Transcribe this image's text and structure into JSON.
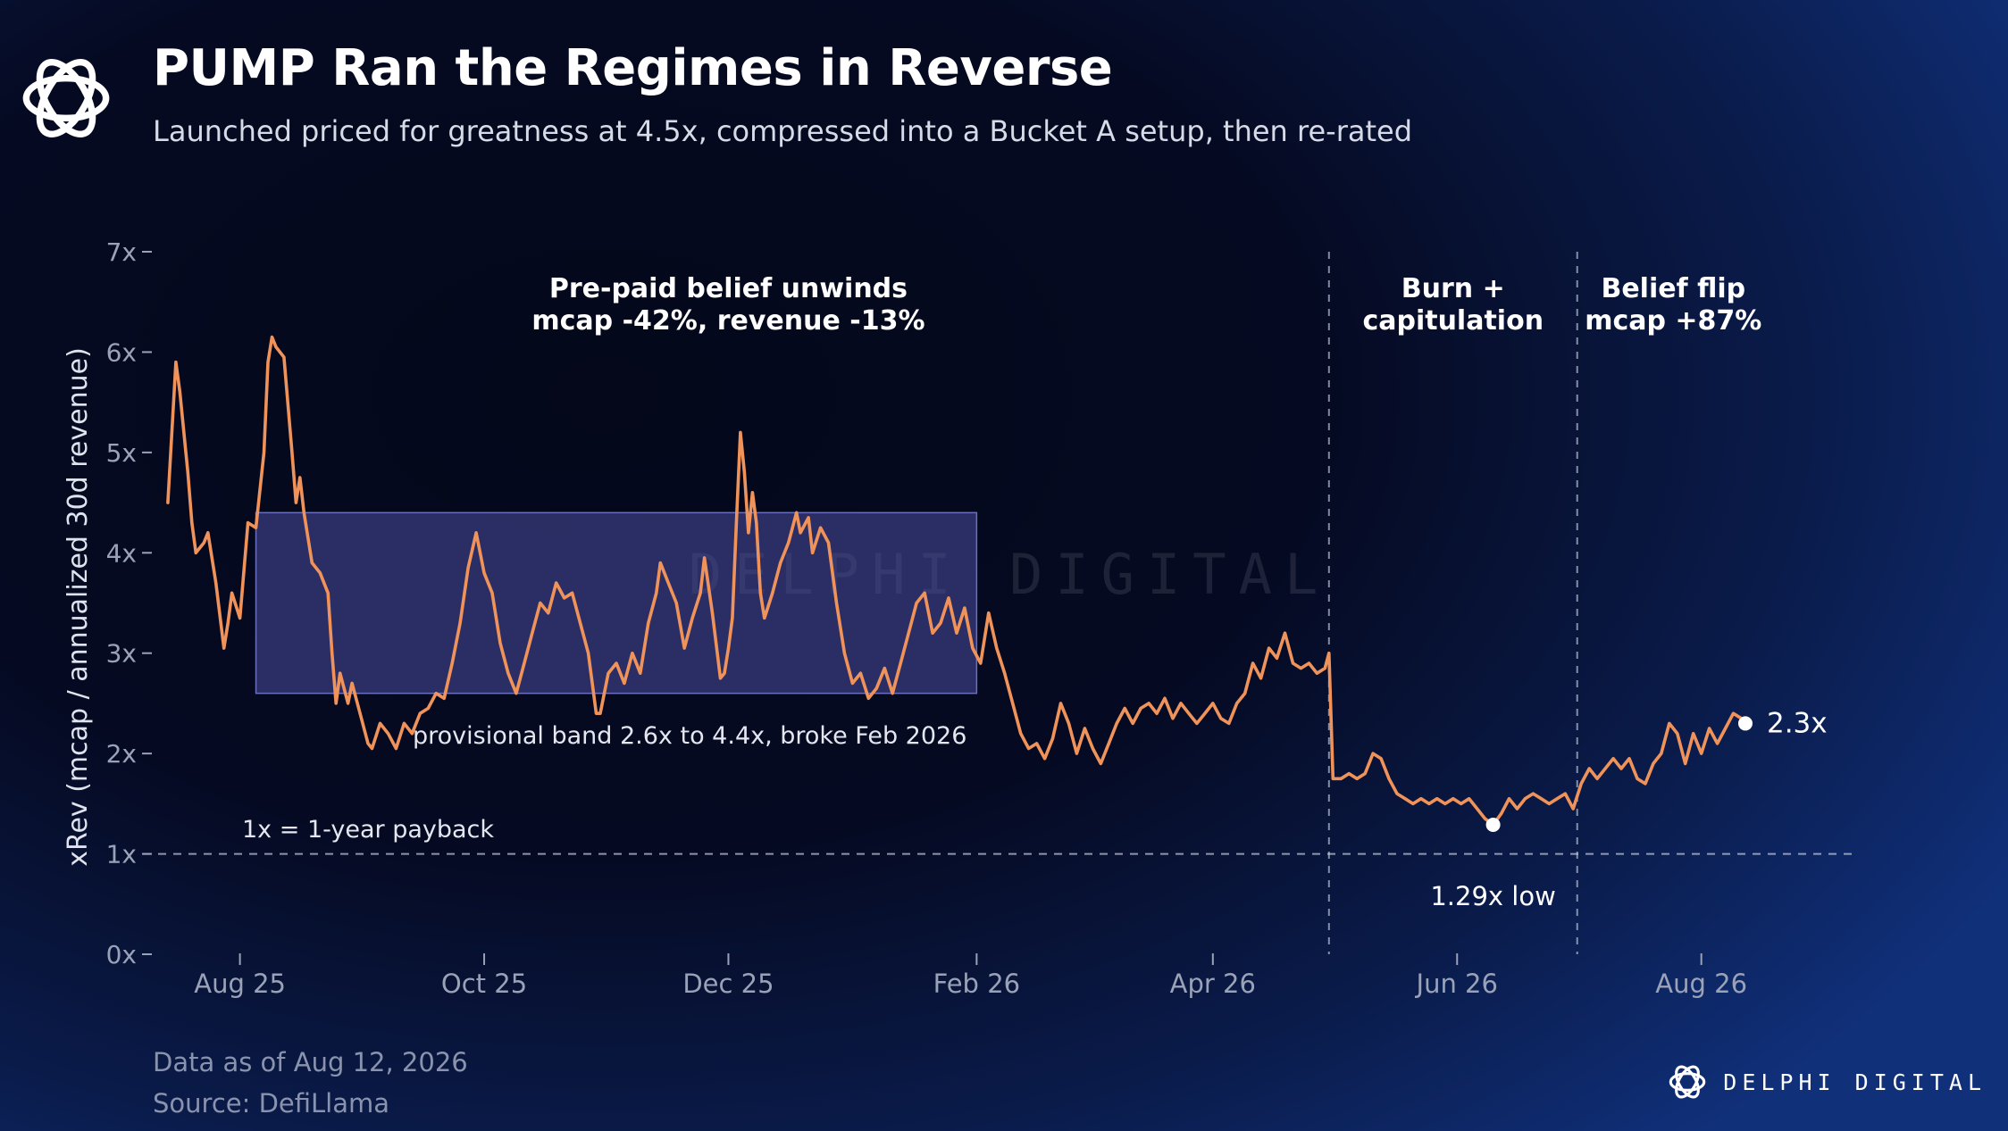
{
  "header": {
    "title": "PUMP Ran the Regimes in Reverse",
    "subtitle": "Launched priced for greatness at 4.5x, compressed into a Bucket A setup, then re-rated"
  },
  "footer": {
    "data_as_of": "Data as of Aug 12, 2026",
    "source": "Source: DefiLlama",
    "brand": "DELPHI DIGITAL",
    "watermark": "DELPHI DIGITAL"
  },
  "colors": {
    "line": "#f0935a",
    "band_fill": "#4a4d9e",
    "reference_line": "#c9cfdd",
    "axis_text": "#9aa2b8",
    "text": "#ffffff"
  },
  "chart_data": {
    "type": "line",
    "ylabel": "xRev (mcap / annualized 30d revenue)",
    "xlabel": "",
    "ylim": [
      0,
      7
    ],
    "xlim": [
      "2025-07-10",
      "2026-09-08"
    ],
    "y_ticks": [
      0,
      1,
      2,
      3,
      4,
      5,
      6,
      7
    ],
    "y_tick_labels": [
      "0x",
      "1x",
      "2x",
      "3x",
      "4x",
      "5x",
      "6x",
      "7x"
    ],
    "x_ticks": [
      {
        "date": "2025-08-01",
        "label": "Aug 25"
      },
      {
        "date": "2025-10-01",
        "label": "Oct 25"
      },
      {
        "date": "2025-12-01",
        "label": "Dec 25"
      },
      {
        "date": "2026-02-01",
        "label": "Feb 26"
      },
      {
        "date": "2026-04-01",
        "label": "Apr 26"
      },
      {
        "date": "2026-06-01",
        "label": "Jun 26"
      },
      {
        "date": "2026-08-01",
        "label": "Aug 26"
      }
    ],
    "series": [
      {
        "points": [
          [
            "2025-07-14",
            4.5
          ],
          [
            "2025-07-16",
            5.9
          ],
          [
            "2025-07-17",
            5.6
          ],
          [
            "2025-07-19",
            4.8
          ],
          [
            "2025-07-20",
            4.3
          ],
          [
            "2025-07-21",
            4.0
          ],
          [
            "2025-07-23",
            4.1
          ],
          [
            "2025-07-24",
            4.2
          ],
          [
            "2025-07-26",
            3.7
          ],
          [
            "2025-07-28",
            3.05
          ],
          [
            "2025-07-29",
            3.3
          ],
          [
            "2025-07-30",
            3.6
          ],
          [
            "2025-08-01",
            3.35
          ],
          [
            "2025-08-03",
            4.3
          ],
          [
            "2025-08-05",
            4.25
          ],
          [
            "2025-08-07",
            5.0
          ],
          [
            "2025-08-08",
            5.9
          ],
          [
            "2025-08-09",
            6.15
          ],
          [
            "2025-08-10",
            6.05
          ],
          [
            "2025-08-12",
            5.95
          ],
          [
            "2025-08-14",
            5.0
          ],
          [
            "2025-08-15",
            4.5
          ],
          [
            "2025-08-16",
            4.75
          ],
          [
            "2025-08-17",
            4.4
          ],
          [
            "2025-08-19",
            3.9
          ],
          [
            "2025-08-21",
            3.8
          ],
          [
            "2025-08-23",
            3.6
          ],
          [
            "2025-08-24",
            3.0
          ],
          [
            "2025-08-25",
            2.5
          ],
          [
            "2025-08-26",
            2.8
          ],
          [
            "2025-08-28",
            2.5
          ],
          [
            "2025-08-29",
            2.7
          ],
          [
            "2025-08-31",
            2.4
          ],
          [
            "2025-09-02",
            2.1
          ],
          [
            "2025-09-03",
            2.05
          ],
          [
            "2025-09-05",
            2.3
          ],
          [
            "2025-09-07",
            2.2
          ],
          [
            "2025-09-09",
            2.05
          ],
          [
            "2025-09-11",
            2.3
          ],
          [
            "2025-09-13",
            2.2
          ],
          [
            "2025-09-15",
            2.4
          ],
          [
            "2025-09-17",
            2.45
          ],
          [
            "2025-09-19",
            2.6
          ],
          [
            "2025-09-21",
            2.55
          ],
          [
            "2025-09-23",
            2.9
          ],
          [
            "2025-09-25",
            3.3
          ],
          [
            "2025-09-27",
            3.85
          ],
          [
            "2025-09-29",
            4.2
          ],
          [
            "2025-10-01",
            3.8
          ],
          [
            "2025-10-03",
            3.6
          ],
          [
            "2025-10-05",
            3.1
          ],
          [
            "2025-10-07",
            2.8
          ],
          [
            "2025-10-09",
            2.6
          ],
          [
            "2025-10-11",
            2.9
          ],
          [
            "2025-10-13",
            3.2
          ],
          [
            "2025-10-15",
            3.5
          ],
          [
            "2025-10-17",
            3.4
          ],
          [
            "2025-10-19",
            3.7
          ],
          [
            "2025-10-21",
            3.55
          ],
          [
            "2025-10-23",
            3.6
          ],
          [
            "2025-10-25",
            3.3
          ],
          [
            "2025-10-27",
            3.0
          ],
          [
            "2025-10-29",
            2.4
          ],
          [
            "2025-10-30",
            2.4
          ],
          [
            "2025-11-01",
            2.8
          ],
          [
            "2025-11-03",
            2.9
          ],
          [
            "2025-11-05",
            2.7
          ],
          [
            "2025-11-07",
            3.0
          ],
          [
            "2025-11-09",
            2.8
          ],
          [
            "2025-11-11",
            3.3
          ],
          [
            "2025-11-13",
            3.6
          ],
          [
            "2025-11-14",
            3.9
          ],
          [
            "2025-11-16",
            3.7
          ],
          [
            "2025-11-18",
            3.5
          ],
          [
            "2025-11-20",
            3.05
          ],
          [
            "2025-11-22",
            3.35
          ],
          [
            "2025-11-24",
            3.6
          ],
          [
            "2025-11-25",
            3.95
          ],
          [
            "2025-11-27",
            3.4
          ],
          [
            "2025-11-29",
            2.75
          ],
          [
            "2025-11-30",
            2.8
          ],
          [
            "2025-12-01",
            3.05
          ],
          [
            "2025-12-02",
            3.35
          ],
          [
            "2025-12-03",
            4.3
          ],
          [
            "2025-12-04",
            5.2
          ],
          [
            "2025-12-05",
            4.8
          ],
          [
            "2025-12-06",
            4.2
          ],
          [
            "2025-12-07",
            4.6
          ],
          [
            "2025-12-08",
            4.3
          ],
          [
            "2025-12-09",
            3.6
          ],
          [
            "2025-12-10",
            3.35
          ],
          [
            "2025-12-12",
            3.6
          ],
          [
            "2025-12-14",
            3.9
          ],
          [
            "2025-12-16",
            4.1
          ],
          [
            "2025-12-18",
            4.4
          ],
          [
            "2025-12-19",
            4.2
          ],
          [
            "2025-12-21",
            4.35
          ],
          [
            "2025-12-22",
            4.0
          ],
          [
            "2025-12-24",
            4.25
          ],
          [
            "2025-12-26",
            4.1
          ],
          [
            "2025-12-28",
            3.5
          ],
          [
            "2025-12-30",
            3.0
          ],
          [
            "2026-01-01",
            2.7
          ],
          [
            "2026-01-03",
            2.8
          ],
          [
            "2026-01-05",
            2.55
          ],
          [
            "2026-01-07",
            2.65
          ],
          [
            "2026-01-09",
            2.85
          ],
          [
            "2026-01-11",
            2.6
          ],
          [
            "2026-01-13",
            2.9
          ],
          [
            "2026-01-15",
            3.2
          ],
          [
            "2026-01-17",
            3.5
          ],
          [
            "2026-01-19",
            3.6
          ],
          [
            "2026-01-21",
            3.2
          ],
          [
            "2026-01-23",
            3.3
          ],
          [
            "2026-01-25",
            3.55
          ],
          [
            "2026-01-27",
            3.2
          ],
          [
            "2026-01-29",
            3.45
          ],
          [
            "2026-01-31",
            3.05
          ],
          [
            "2026-02-02",
            2.9
          ],
          [
            "2026-02-04",
            3.4
          ],
          [
            "2026-02-06",
            3.05
          ],
          [
            "2026-02-08",
            2.8
          ],
          [
            "2026-02-10",
            2.5
          ],
          [
            "2026-02-12",
            2.2
          ],
          [
            "2026-02-14",
            2.05
          ],
          [
            "2026-02-16",
            2.1
          ],
          [
            "2026-02-18",
            1.95
          ],
          [
            "2026-02-20",
            2.15
          ],
          [
            "2026-02-22",
            2.5
          ],
          [
            "2026-02-24",
            2.3
          ],
          [
            "2026-02-26",
            2.0
          ],
          [
            "2026-02-28",
            2.25
          ],
          [
            "2026-03-02",
            2.05
          ],
          [
            "2026-03-04",
            1.9
          ],
          [
            "2026-03-06",
            2.1
          ],
          [
            "2026-03-08",
            2.3
          ],
          [
            "2026-03-10",
            2.45
          ],
          [
            "2026-03-12",
            2.3
          ],
          [
            "2026-03-14",
            2.45
          ],
          [
            "2026-03-16",
            2.5
          ],
          [
            "2026-03-18",
            2.4
          ],
          [
            "2026-03-20",
            2.55
          ],
          [
            "2026-03-22",
            2.35
          ],
          [
            "2026-03-24",
            2.5
          ],
          [
            "2026-03-26",
            2.4
          ],
          [
            "2026-03-28",
            2.3
          ],
          [
            "2026-03-30",
            2.4
          ],
          [
            "2026-04-01",
            2.5
          ],
          [
            "2026-04-03",
            2.35
          ],
          [
            "2026-04-05",
            2.3
          ],
          [
            "2026-04-07",
            2.5
          ],
          [
            "2026-04-09",
            2.6
          ],
          [
            "2026-04-11",
            2.9
          ],
          [
            "2026-04-13",
            2.75
          ],
          [
            "2026-04-15",
            3.05
          ],
          [
            "2026-04-17",
            2.95
          ],
          [
            "2026-04-19",
            3.2
          ],
          [
            "2026-04-21",
            2.9
          ],
          [
            "2026-04-23",
            2.85
          ],
          [
            "2026-04-25",
            2.9
          ],
          [
            "2026-04-27",
            2.8
          ],
          [
            "2026-04-29",
            2.85
          ],
          [
            "2026-04-30",
            3.0
          ],
          [
            "2026-05-01",
            1.75
          ],
          [
            "2026-05-03",
            1.75
          ],
          [
            "2026-05-05",
            1.8
          ],
          [
            "2026-05-07",
            1.75
          ],
          [
            "2026-05-09",
            1.8
          ],
          [
            "2026-05-11",
            2.0
          ],
          [
            "2026-05-13",
            1.95
          ],
          [
            "2026-05-15",
            1.75
          ],
          [
            "2026-05-17",
            1.6
          ],
          [
            "2026-05-19",
            1.55
          ],
          [
            "2026-05-21",
            1.5
          ],
          [
            "2026-05-23",
            1.55
          ],
          [
            "2026-05-25",
            1.5
          ],
          [
            "2026-05-27",
            1.55
          ],
          [
            "2026-05-29",
            1.5
          ],
          [
            "2026-05-31",
            1.55
          ],
          [
            "2026-06-02",
            1.5
          ],
          [
            "2026-06-04",
            1.55
          ],
          [
            "2026-06-06",
            1.45
          ],
          [
            "2026-06-08",
            1.35
          ],
          [
            "2026-06-10",
            1.29
          ],
          [
            "2026-06-12",
            1.4
          ],
          [
            "2026-06-14",
            1.55
          ],
          [
            "2026-06-16",
            1.45
          ],
          [
            "2026-06-18",
            1.55
          ],
          [
            "2026-06-20",
            1.6
          ],
          [
            "2026-06-22",
            1.55
          ],
          [
            "2026-06-24",
            1.5
          ],
          [
            "2026-06-26",
            1.55
          ],
          [
            "2026-06-28",
            1.6
          ],
          [
            "2026-06-30",
            1.45
          ],
          [
            "2026-07-02",
            1.7
          ],
          [
            "2026-07-04",
            1.85
          ],
          [
            "2026-07-06",
            1.75
          ],
          [
            "2026-07-08",
            1.85
          ],
          [
            "2026-07-10",
            1.95
          ],
          [
            "2026-07-12",
            1.85
          ],
          [
            "2026-07-14",
            1.95
          ],
          [
            "2026-07-16",
            1.75
          ],
          [
            "2026-07-18",
            1.7
          ],
          [
            "2026-07-20",
            1.9
          ],
          [
            "2026-07-22",
            2.0
          ],
          [
            "2026-07-24",
            2.3
          ],
          [
            "2026-07-26",
            2.2
          ],
          [
            "2026-07-28",
            1.9
          ],
          [
            "2026-07-30",
            2.2
          ],
          [
            "2026-08-01",
            2.0
          ],
          [
            "2026-08-03",
            2.25
          ],
          [
            "2026-08-05",
            2.1
          ],
          [
            "2026-08-07",
            2.25
          ],
          [
            "2026-08-09",
            2.4
          ],
          [
            "2026-08-11",
            2.35
          ],
          [
            "2026-08-12",
            2.3
          ]
        ]
      }
    ],
    "band": {
      "y_low": 2.6,
      "y_high": 4.4,
      "x_start": "2025-08-05",
      "x_end": "2026-02-01",
      "label": "provisional band 2.6x to 4.4x, broke Feb 2026"
    },
    "reference_line": {
      "y": 1,
      "label": "1x = 1-year payback"
    },
    "regime_dividers": [
      "2026-04-30",
      "2026-07-01"
    ],
    "regime_labels": [
      {
        "lines": [
          "Pre-paid belief unwinds",
          "mcap -42%, revenue -13%"
        ],
        "x": "2025-12-01"
      },
      {
        "lines": [
          "Burn +",
          "capitulation"
        ],
        "x": "2026-05-31"
      },
      {
        "lines": [
          "Belief flip",
          "mcap +87%"
        ],
        "x": "2026-07-25"
      }
    ],
    "point_annotations": [
      {
        "x": "2026-06-10",
        "y": 1.29,
        "label": "1.29x low",
        "position": "below"
      },
      {
        "x": "2026-08-12",
        "y": 2.3,
        "label": "2.3x",
        "position": "right"
      }
    ]
  }
}
